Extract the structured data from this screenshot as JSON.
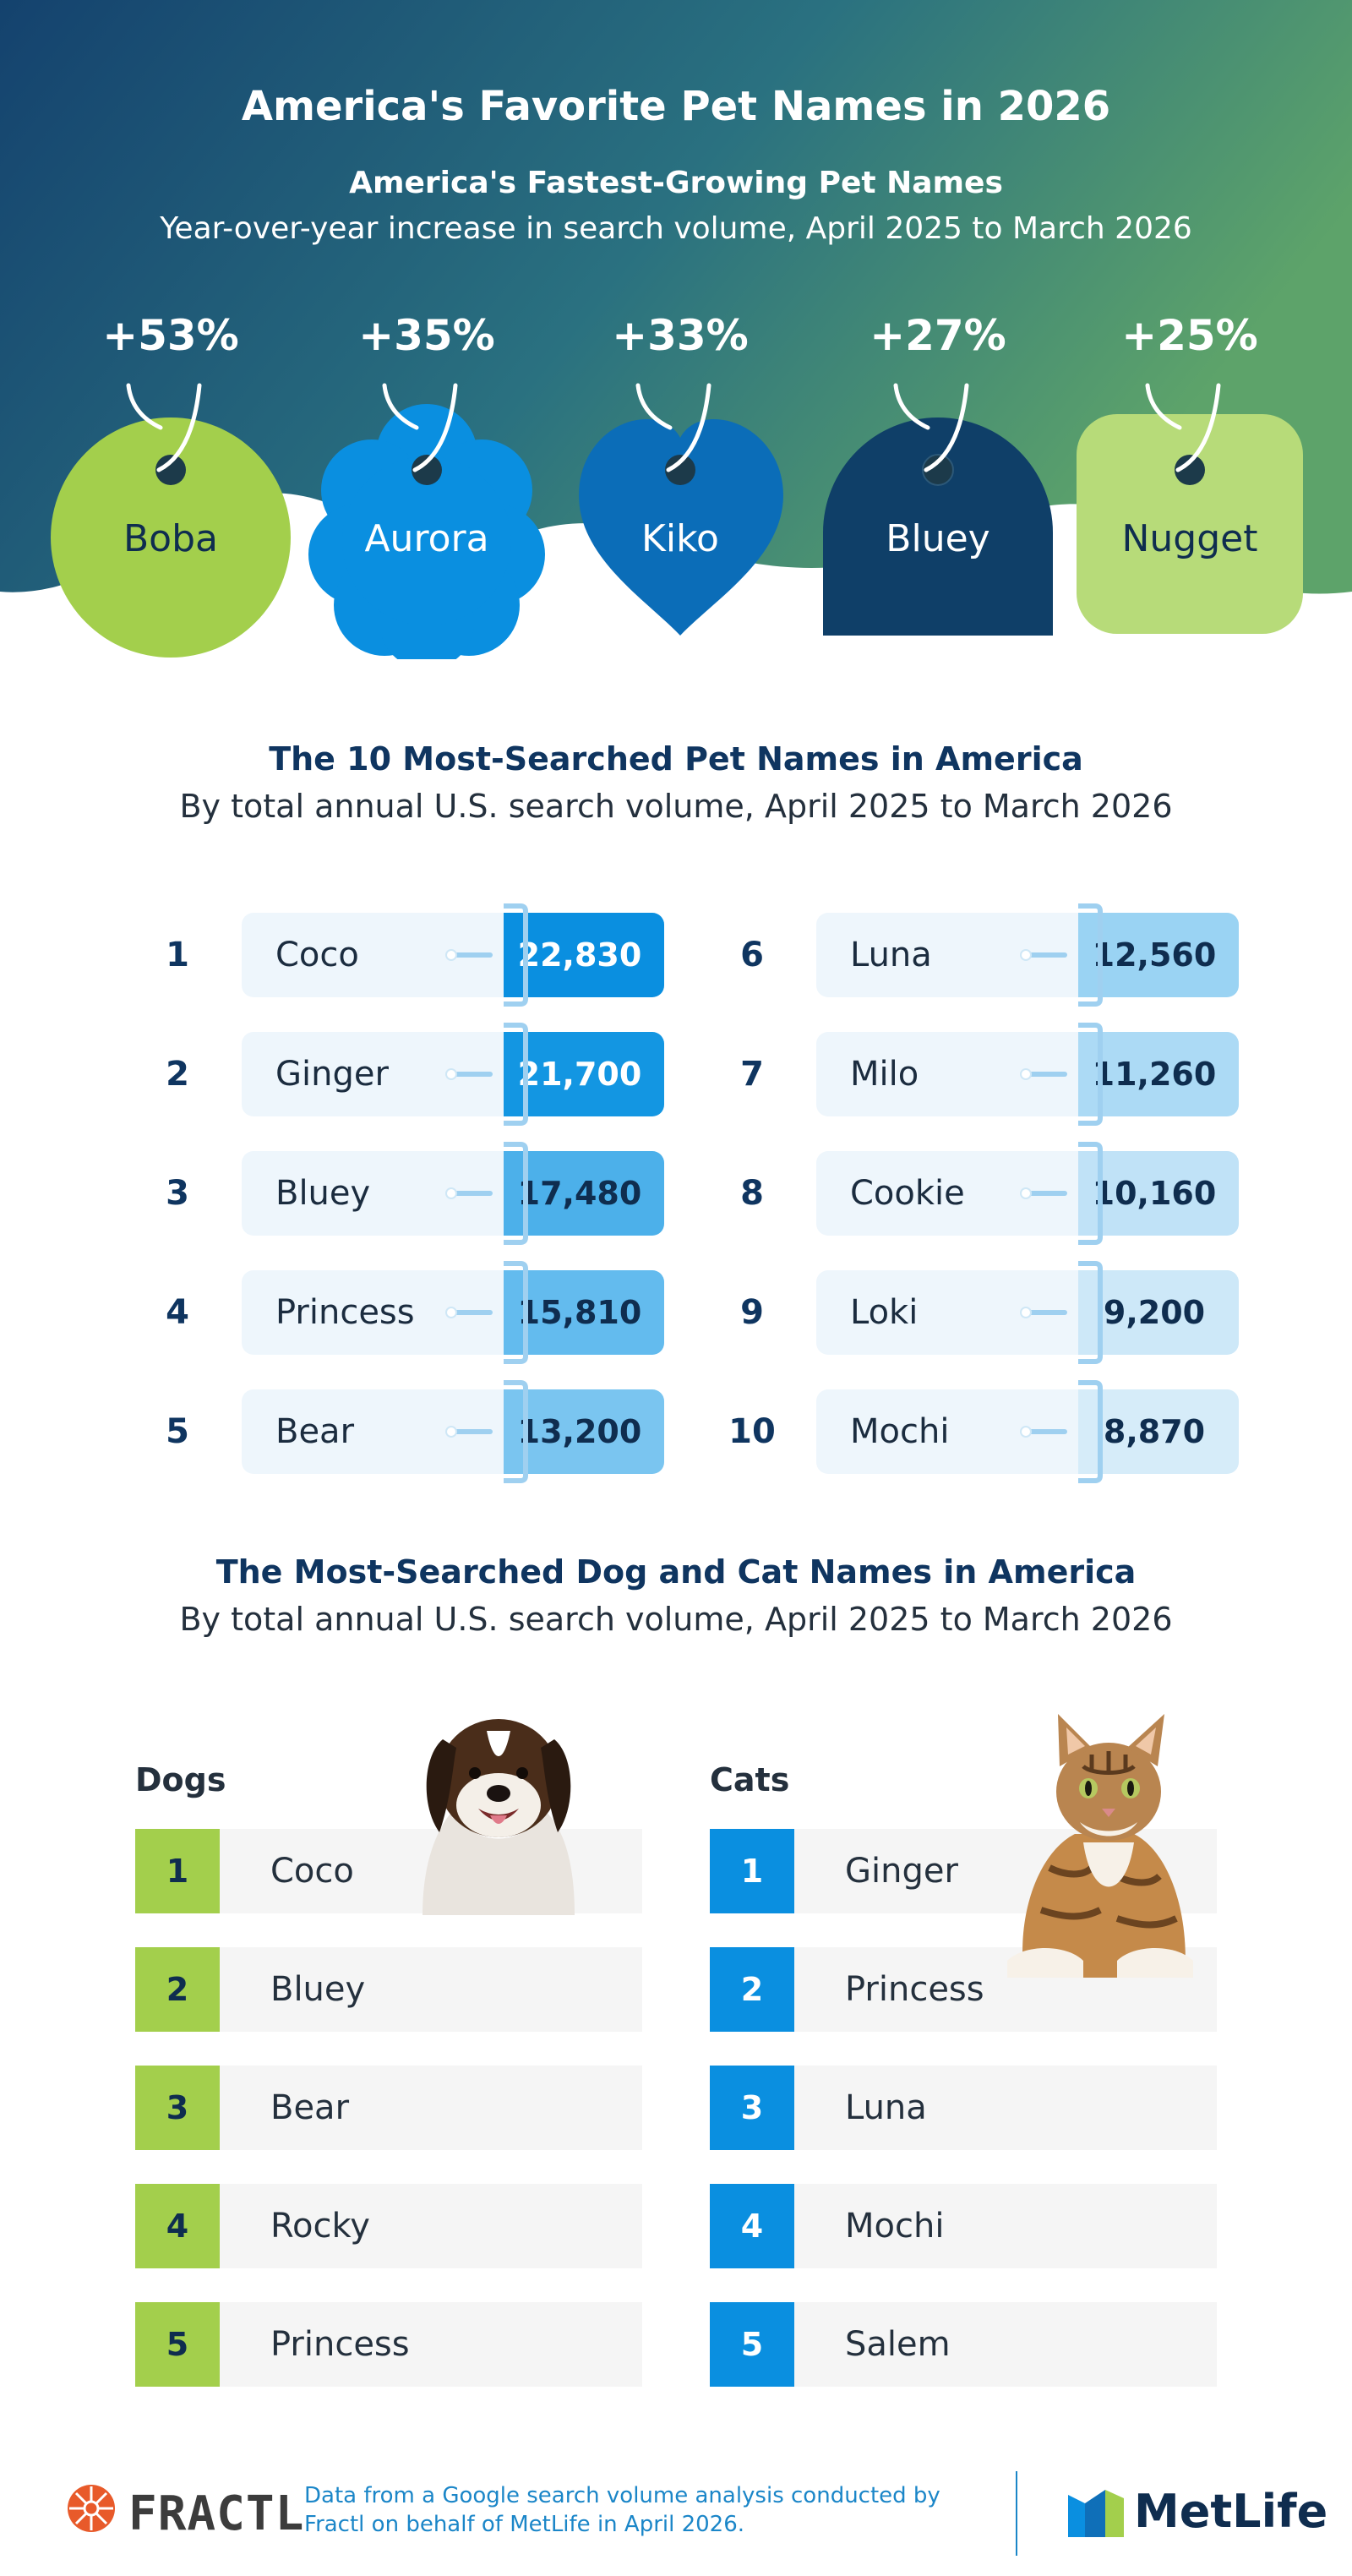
{
  "hero": {
    "title": "America's Favorite Pet Names in 2026",
    "subtitle": "America's Fastest-Growing Pet Names",
    "description": "Year-over-year increase in search volume, April 2025 to March 2026",
    "gradient": [
      "#14426e",
      "#2f7a7e",
      "#5da36a"
    ],
    "tags": [
      {
        "percent": "+53%",
        "name": "Boba",
        "shape": "circle",
        "color": "#a3cf4c",
        "text_color": "#0f2d4f"
      },
      {
        "percent": "+35%",
        "name": "Aurora",
        "shape": "cloud",
        "color": "#0a8fe0",
        "text_color": "#ffffff"
      },
      {
        "percent": "+33%",
        "name": "Kiko",
        "shape": "heart",
        "color": "#0b6db8",
        "text_color": "#ffffff"
      },
      {
        "percent": "+27%",
        "name": "Bluey",
        "shape": "arch",
        "color": "#0f3f68",
        "text_color": "#ffffff"
      },
      {
        "percent": "+25%",
        "name": "Nugget",
        "shape": "rounded-square",
        "color": "#b7db79",
        "text_color": "#0f2d4f"
      }
    ]
  },
  "top10": {
    "title": "The 10 Most-Searched Pet Names in America",
    "subtitle": "By total annual U.S. search volume, April 2025 to March 2026",
    "items": [
      {
        "rank": "1",
        "name": "Coco",
        "value": "22,830",
        "color": "#0a8fe0",
        "text_color": "#ffffff"
      },
      {
        "rank": "2",
        "name": "Ginger",
        "value": "21,700",
        "color": "#1396e2",
        "text_color": "#ffffff"
      },
      {
        "rank": "3",
        "name": "Bluey",
        "value": "17,480",
        "color": "#4cb0ea",
        "text_color": "#0f2d4f"
      },
      {
        "rank": "4",
        "name": "Princess",
        "value": "15,810",
        "color": "#63bbee",
        "text_color": "#0f2d4f"
      },
      {
        "rank": "5",
        "name": "Bear",
        "value": "13,200",
        "color": "#7ac5f0",
        "text_color": "#0f2d4f"
      },
      {
        "rank": "6",
        "name": "Luna",
        "value": "12,560",
        "color": "#9ad3f3",
        "text_color": "#0f2d4f"
      },
      {
        "rank": "7",
        "name": "Milo",
        "value": "11,260",
        "color": "#acdaf5",
        "text_color": "#0f2d4f"
      },
      {
        "rank": "8",
        "name": "Cookie",
        "value": "10,160",
        "color": "#c0e2f7",
        "text_color": "#0f2d4f"
      },
      {
        "rank": "9",
        "name": "Loki",
        "value": "9,200",
        "color": "#cde8f8",
        "text_color": "#0f2d4f"
      },
      {
        "rank": "10",
        "name": "Mochi",
        "value": "8,870",
        "color": "#d6ecf9",
        "text_color": "#0f2d4f"
      }
    ]
  },
  "dogs_cats": {
    "title": "The Most-Searched Dog and Cat Names in America",
    "subtitle": "By total annual U.S. search volume, April 2025 to March 2026",
    "dogs": {
      "heading": "Dogs",
      "color": "#a3cf4c",
      "items": [
        {
          "rank": "1",
          "name": "Coco"
        },
        {
          "rank": "2",
          "name": "Bluey"
        },
        {
          "rank": "3",
          "name": "Bear"
        },
        {
          "rank": "4",
          "name": "Rocky"
        },
        {
          "rank": "5",
          "name": "Princess"
        }
      ]
    },
    "cats": {
      "heading": "Cats",
      "color": "#0a8fe0",
      "items": [
        {
          "rank": "1",
          "name": "Ginger"
        },
        {
          "rank": "2",
          "name": "Princess"
        },
        {
          "rank": "3",
          "name": "Luna"
        },
        {
          "rank": "4",
          "name": "Mochi"
        },
        {
          "rank": "5",
          "name": "Salem"
        }
      ]
    }
  },
  "footer": {
    "fractl_logo": "FRACTL",
    "note": "Data from a Google search volume analysis conducted by Fractl on behalf of MetLife in April 2026.",
    "metlife_logo": "MetLife"
  }
}
